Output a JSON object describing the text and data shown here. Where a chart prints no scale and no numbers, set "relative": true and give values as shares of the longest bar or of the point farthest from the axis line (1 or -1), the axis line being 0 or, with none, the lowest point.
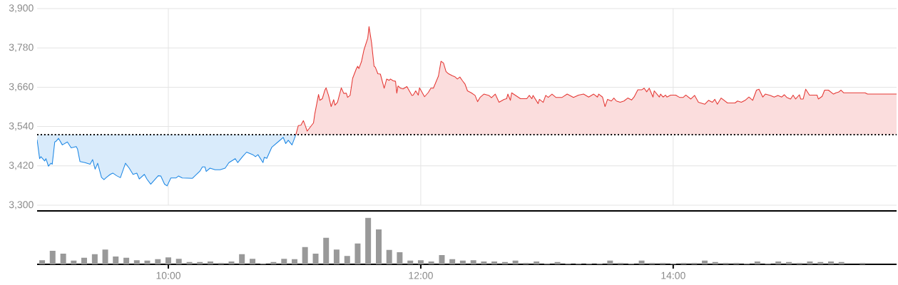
{
  "chart_data": [
    {
      "type": "area",
      "xlim": [
        8.96,
        15.77
      ],
      "ylim": [
        3300,
        3900
      ],
      "xticks": [
        10,
        12,
        14
      ],
      "tick_labels": "y",
      "grid": true,
      "yticks": [
        {
          "value": 3300,
          "label": "3,300"
        },
        {
          "value": 3420,
          "label": "3,420"
        },
        {
          "value": 3540,
          "label": "3,540"
        },
        {
          "value": 3660,
          "label": "3,660"
        },
        {
          "value": 3780,
          "label": "3,780"
        },
        {
          "value": 3900,
          "label": "3,900"
        }
      ],
      "ref_lines": [
        {
          "axis": "y",
          "value": 3515,
          "line_style": "dotted",
          "color": "#000000"
        }
      ],
      "series": [
        {
          "color": "#1e88e5",
          "type": "line",
          "upper": [
            3515,
            3515,
            3515,
            3515,
            3515,
            3515,
            3515,
            3515,
            3515,
            3515,
            3515,
            3515,
            3515,
            3515,
            3515,
            3515,
            3515,
            3515,
            3515,
            3515,
            3515,
            3515,
            3515,
            3515,
            3515,
            3515,
            3515,
            3515,
            3515,
            3515,
            3515,
            3515,
            3515,
            3515,
            3515,
            3515,
            3515,
            3515,
            3515,
            3515,
            3515,
            3515,
            3515,
            3515,
            3515,
            3515,
            3515,
            3515,
            3515,
            3515,
            3515,
            3515,
            3515,
            3515,
            3515,
            3515,
            3515,
            3515,
            3515,
            3515,
            3515,
            3515,
            3515,
            3515,
            3515,
            3515,
            3515,
            3515,
            3515,
            3515,
            3515,
            3515,
            3515
          ],
          "lower": [
            3500,
            3442,
            3448,
            3435,
            3442,
            3419,
            3428,
            3425,
            3493,
            3495,
            3504,
            3484,
            3493,
            3475,
            3479,
            3472,
            3433,
            3430,
            3425,
            3439,
            3410,
            3428,
            3385,
            3378,
            3385,
            3394,
            3398,
            3390,
            3384,
            3428,
            3413,
            3394,
            3398,
            3380,
            3394,
            3380,
            3364,
            3377,
            3390,
            3389,
            3364,
            3359,
            3383,
            3383,
            3389,
            3383,
            3382,
            3404,
            3417,
            3417,
            3403,
            3413,
            3408,
            3408,
            3413,
            3430,
            3442,
            3430,
            3449,
            3462,
            3454,
            3448,
            3454,
            3430,
            3446,
            3443,
            3477,
            3500,
            3507,
            3488,
            3498,
            3484,
            3515
          ],
          "x": [
            8.96,
            8.98,
            8.99,
            9.02,
            9.03,
            9.05,
            9.07,
            9.08,
            9.1,
            9.11,
            9.13,
            9.16,
            9.2,
            9.23,
            9.27,
            9.28,
            9.3,
            9.34,
            9.38,
            9.4,
            9.42,
            9.44,
            9.47,
            9.49,
            9.51,
            9.54,
            9.56,
            9.59,
            9.62,
            9.66,
            9.69,
            9.72,
            9.75,
            9.77,
            9.81,
            9.83,
            9.86,
            9.89,
            9.92,
            9.94,
            9.97,
            9.99,
            10.02,
            10.06,
            10.08,
            10.11,
            10.19,
            10.25,
            10.27,
            10.29,
            10.3,
            10.33,
            10.37,
            10.41,
            10.45,
            10.48,
            10.53,
            10.55,
            10.59,
            10.62,
            10.67,
            10.69,
            10.71,
            10.75,
            10.76,
            10.78,
            10.82,
            10.89,
            10.91,
            10.93,
            10.95,
            10.98,
            11.01
          ],
          "values": [
            3500,
            3442,
            3448,
            3435,
            3442,
            3419,
            3428,
            3425,
            3493,
            3495,
            3504,
            3484,
            3493,
            3475,
            3479,
            3472,
            3433,
            3430,
            3425,
            3439,
            3410,
            3428,
            3385,
            3378,
            3385,
            3394,
            3398,
            3390,
            3384,
            3428,
            3413,
            3394,
            3398,
            3380,
            3394,
            3380,
            3364,
            3377,
            3390,
            3389,
            3364,
            3359,
            3383,
            3383,
            3389,
            3383,
            3382,
            3404,
            3417,
            3417,
            3403,
            3413,
            3408,
            3408,
            3413,
            3430,
            3442,
            3430,
            3449,
            3462,
            3454,
            3448,
            3454,
            3430,
            3446,
            3443,
            3477,
            3500,
            3507,
            3488,
            3498,
            3484,
            3515
          ]
        },
        {
          "color": "#e53935",
          "x": [
            11.01,
            11.03,
            11.05,
            11.07,
            11.08,
            11.1,
            11.15,
            11.16,
            11.19,
            11.2,
            11.22,
            11.24,
            11.25,
            11.27,
            11.29,
            11.31,
            11.32,
            11.34,
            11.37,
            11.39,
            11.41,
            11.42,
            11.44,
            11.46,
            11.49,
            11.5,
            11.51,
            11.53,
            11.55,
            11.58,
            11.59,
            11.61,
            11.63,
            11.64,
            11.66,
            11.68,
            11.71,
            11.73,
            11.75,
            11.76,
            11.78,
            11.8,
            11.81,
            11.82,
            11.84,
            11.86,
            11.89,
            11.93,
            11.94,
            11.96,
            11.98,
            11.99,
            12.03,
            12.06,
            12.08,
            12.1,
            12.14,
            12.16,
            12.18,
            12.2,
            12.22,
            12.25,
            12.27,
            12.29,
            12.31,
            12.33,
            12.35,
            12.37,
            12.4,
            12.43,
            12.45,
            12.47,
            12.5,
            12.54,
            12.56,
            12.59,
            12.62,
            12.66,
            12.68,
            12.69,
            12.71,
            12.72,
            12.79,
            12.84,
            12.86,
            12.88,
            12.89,
            12.93,
            12.94,
            12.97,
            12.99,
            13.01,
            13.04,
            13.07,
            13.12,
            13.16,
            13.21,
            13.25,
            13.29,
            13.33,
            13.37,
            13.4,
            13.41,
            13.44,
            13.46,
            13.48,
            13.51,
            13.53,
            13.55,
            13.58,
            13.61,
            13.64,
            13.67,
            13.69,
            13.72,
            13.75,
            13.77,
            13.79,
            13.81,
            13.84,
            13.85,
            13.89,
            13.9,
            13.92,
            13.94,
            13.95,
            13.98,
            14.02,
            14.05,
            14.08,
            14.1,
            14.14,
            14.17,
            14.2,
            14.25,
            14.28,
            14.31,
            14.33,
            14.35,
            14.38,
            14.43,
            14.49,
            14.51,
            14.54,
            14.57,
            14.6,
            14.63,
            14.66,
            14.68,
            14.71,
            14.73,
            14.77,
            14.8,
            14.83,
            14.86,
            14.88,
            14.9,
            14.93,
            14.95,
            14.97,
            15.0,
            15.01,
            15.03,
            15.05,
            15.08,
            15.14,
            15.15,
            15.18,
            15.2,
            15.23,
            15.27,
            15.29,
            15.31,
            15.33,
            15.35,
            15.52,
            15.54,
            15.77
          ],
          "values": [
            3515,
            3543,
            3544,
            3558,
            3548,
            3526,
            3551,
            3578,
            3638,
            3620,
            3625,
            3651,
            3658,
            3634,
            3601,
            3622,
            3605,
            3614,
            3658,
            3641,
            3642,
            3629,
            3635,
            3687,
            3717,
            3724,
            3717,
            3738,
            3774,
            3810,
            3845,
            3796,
            3724,
            3721,
            3701,
            3700,
            3657,
            3685,
            3681,
            3685,
            3680,
            3678,
            3642,
            3664,
            3657,
            3655,
            3662,
            3635,
            3636,
            3649,
            3636,
            3658,
            3631,
            3644,
            3657,
            3657,
            3694,
            3739,
            3734,
            3708,
            3701,
            3695,
            3692,
            3685,
            3691,
            3680,
            3670,
            3649,
            3643,
            3635,
            3616,
            3629,
            3639,
            3635,
            3628,
            3639,
            3614,
            3623,
            3625,
            3639,
            3620,
            3643,
            3625,
            3625,
            3635,
            3625,
            3635,
            3610,
            3623,
            3614,
            3635,
            3629,
            3639,
            3629,
            3629,
            3639,
            3629,
            3636,
            3639,
            3630,
            3639,
            3630,
            3639,
            3630,
            3601,
            3623,
            3618,
            3627,
            3618,
            3614,
            3618,
            3627,
            3621,
            3630,
            3652,
            3652,
            3657,
            3646,
            3657,
            3630,
            3649,
            3630,
            3639,
            3630,
            3636,
            3630,
            3636,
            3636,
            3629,
            3629,
            3636,
            3624,
            3635,
            3614,
            3608,
            3620,
            3614,
            3623,
            3608,
            3627,
            3612,
            3612,
            3618,
            3614,
            3620,
            3630,
            3620,
            3651,
            3654,
            3630,
            3639,
            3635,
            3630,
            3635,
            3630,
            3637,
            3629,
            3624,
            3636,
            3624,
            3637,
            3624,
            3624,
            3654,
            3636,
            3636,
            3624,
            3632,
            3651,
            3651,
            3639,
            3643,
            3645,
            3651,
            3643,
            3643,
            3639,
            3639
          ]
        }
      ]
    },
    {
      "type": "bar",
      "relative": true,
      "color": "#999999",
      "xlim": [
        8.96,
        15.77
      ],
      "xticks": [
        {
          "value": 10,
          "label": "10:00"
        },
        {
          "value": 12,
          "label": "12:00"
        },
        {
          "value": 14,
          "label": "14:00"
        }
      ],
      "x": [
        9,
        9.083,
        9.167,
        9.25,
        9.333,
        9.417,
        9.5,
        9.583,
        9.667,
        9.75,
        9.833,
        9.917,
        10,
        10.083,
        10.167,
        10.25,
        10.333,
        10.417,
        10.5,
        10.583,
        10.667,
        10.75,
        10.833,
        10.917,
        11,
        11.083,
        11.167,
        11.25,
        11.333,
        11.417,
        11.5,
        11.583,
        11.667,
        11.75,
        11.833,
        11.917,
        12,
        12.083,
        12.167,
        12.25,
        12.333,
        12.417,
        12.5,
        12.583,
        12.667,
        12.75,
        12.833,
        12.917,
        13,
        13.083,
        13.167,
        13.25,
        13.333,
        13.417,
        13.5,
        13.583,
        13.667,
        13.75,
        13.833,
        13.917,
        14,
        14.083,
        14.167,
        14.25,
        14.333,
        14.417,
        14.5,
        14.583,
        14.667,
        14.75,
        14.833,
        14.917,
        15,
        15.083,
        15.167,
        15.25,
        15.333,
        15.417,
        15.5
      ],
      "values": [
        0.09,
        0.29,
        0.23,
        0.08,
        0.14,
        0.22,
        0.32,
        0.17,
        0.14,
        0.09,
        0.08,
        0.11,
        0.15,
        0.12,
        0.05,
        0.05,
        0.06,
        0.03,
        0.06,
        0.22,
        0.12,
        0.02,
        0.05,
        0.12,
        0.11,
        0.37,
        0.23,
        0.57,
        0.32,
        0.18,
        0.45,
        1,
        0.75,
        0.31,
        0.26,
        0.08,
        0.09,
        0.06,
        0.2,
        0.11,
        0.08,
        0.09,
        0.06,
        0.06,
        0.05,
        0.08,
        0.03,
        0.06,
        0.02,
        0.05,
        0.02,
        0.02,
        0.02,
        0.02,
        0.08,
        0.03,
        0.02,
        0.08,
        0.03,
        0.03,
        0.02,
        0.03,
        0.03,
        0.08,
        0.05,
        0.03,
        0.03,
        0.02,
        0.06,
        0.02,
        0.06,
        0.05,
        0.03,
        0.06,
        0.05,
        0.06,
        0.05,
        0,
        0.03
      ]
    }
  ]
}
